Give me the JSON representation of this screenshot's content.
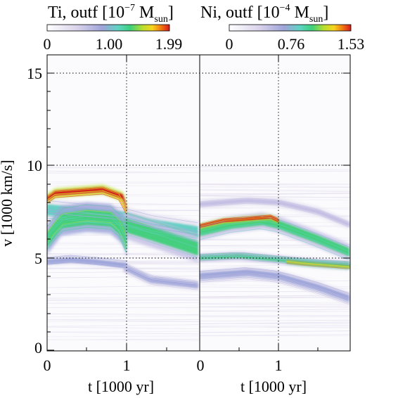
{
  "chart_data": [
    {
      "type": "heatmap",
      "title_main": "Ti, outf [10",
      "title_exp": "−7",
      "title_unit": " M",
      "title_sub": "sun",
      "title_close": "]",
      "colorbar_ticks": [
        "0",
        "1.00",
        "1.99"
      ],
      "colorbar_range": [
        0,
        1.99
      ],
      "xlabel": "t [1000 yr]",
      "ylabel": "v [1000 km/s]",
      "xlim": [
        0,
        1
      ],
      "ylim": [
        0,
        16
      ],
      "xticks": [
        "0",
        "1"
      ],
      "yticks": [
        "0",
        "5",
        "10",
        "15"
      ],
      "grid": "dotted",
      "bands": [
        {
          "t": [
            0.0,
            0.18,
            0.5,
            0.8,
            0.96,
            1.0
          ],
          "v": [
            6.0,
            7.0,
            7.2,
            7.1,
            6.5,
            5.8
          ],
          "w": 1.6,
          "level": 0.55
        },
        {
          "t": [
            0.0,
            0.1,
            0.4,
            0.7,
            0.96,
            1.0
          ],
          "v": [
            8.2,
            8.5,
            8.6,
            8.7,
            8.3,
            7.6
          ],
          "w": 0.5,
          "level": 1.0
        },
        {
          "t": [
            0.0,
            0.3,
            0.6,
            1.0
          ],
          "v": [
            4.8,
            4.9,
            4.8,
            4.6
          ],
          "w": 0.5,
          "level": 0.25
        },
        {
          "t": [
            0.0,
            0.96,
            1.3,
            1.9
          ],
          "v": [
            7.6,
            7.2,
            6.8,
            6.4
          ],
          "w": 1.2,
          "level": 0.35
        },
        {
          "t": [
            0.96,
            1.4,
            1.9
          ],
          "v": [
            6.8,
            6.2,
            5.5
          ],
          "w": 1.5,
          "level": 0.5
        },
        {
          "t": [
            0.96,
            1.3,
            1.9
          ],
          "v": [
            4.5,
            3.8,
            3.5
          ],
          "w": 0.6,
          "level": 0.2
        }
      ]
    },
    {
      "type": "heatmap",
      "title_main": "Ni, outf [10",
      "title_exp": "−4",
      "title_unit": " M",
      "title_sub": "sun",
      "title_close": "]",
      "colorbar_ticks": [
        "0",
        "0.76",
        "1.53"
      ],
      "colorbar_range": [
        0,
        1.53
      ],
      "xlabel": "t [1000 yr]",
      "xlim": [
        0,
        1.9
      ],
      "xticks": [
        "0",
        "1"
      ],
      "grid": "dotted",
      "bands": [
        {
          "t": [
            0.0,
            0.4,
            0.8,
            1.0,
            1.5,
            1.9
          ],
          "v": [
            6.4,
            6.8,
            7.0,
            6.8,
            6.0,
            5.3
          ],
          "w": 0.9,
          "level": 0.5
        },
        {
          "t": [
            0.0,
            0.3,
            0.6,
            0.9,
            1.0
          ],
          "v": [
            6.7,
            7.0,
            7.1,
            7.2,
            7.0
          ],
          "w": 0.25,
          "level": 1.0
        },
        {
          "t": [
            0.0,
            0.5,
            1.0,
            1.5,
            1.9
          ],
          "v": [
            5.0,
            5.1,
            4.9,
            4.7,
            4.6
          ],
          "w": 0.45,
          "level": 0.45
        },
        {
          "t": [
            1.1,
            1.3,
            1.6,
            1.9
          ],
          "v": [
            4.8,
            4.7,
            4.6,
            4.5
          ],
          "w": 0.2,
          "level": 0.8
        },
        {
          "t": [
            0.0,
            0.6,
            1.0,
            1.5,
            1.9
          ],
          "v": [
            4.0,
            4.2,
            4.0,
            3.4,
            2.8
          ],
          "w": 0.7,
          "level": 0.22
        },
        {
          "t": [
            0.0,
            0.6,
            1.0,
            1.5,
            1.9
          ],
          "v": [
            7.9,
            8.1,
            8.0,
            7.5,
            6.8
          ],
          "w": 0.5,
          "level": 0.18
        }
      ]
    }
  ]
}
